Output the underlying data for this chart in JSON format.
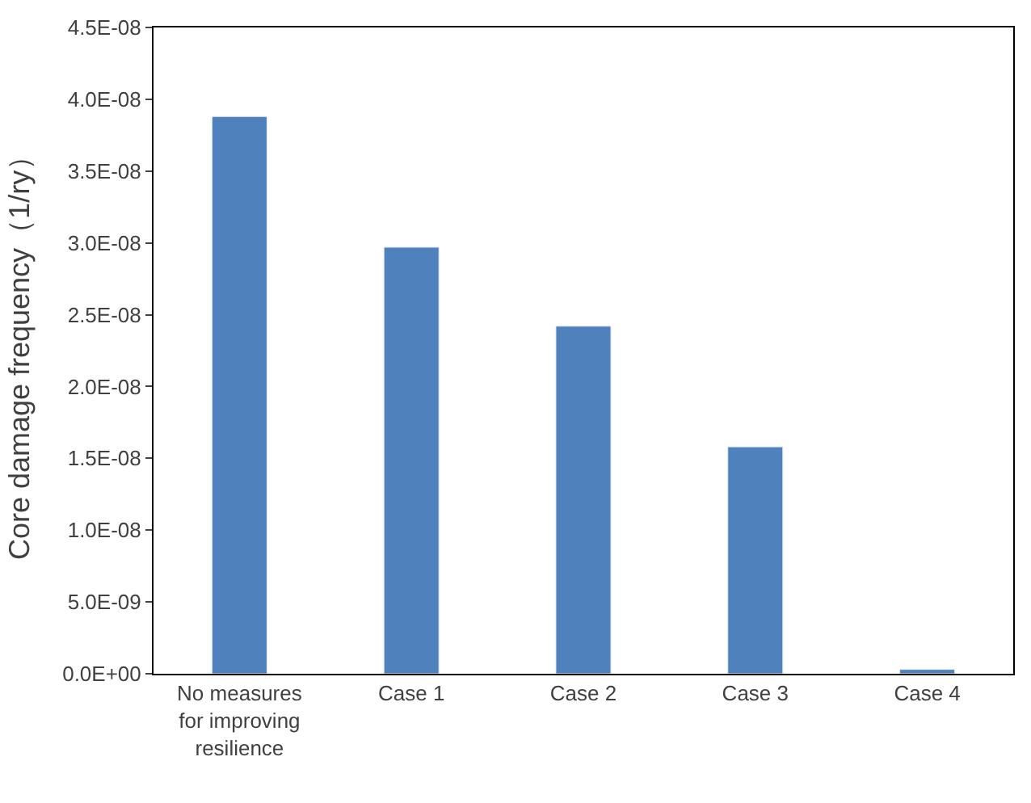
{
  "chart_data": {
    "type": "bar",
    "ylabel": "Core damage frequency（1/ry）",
    "categories": [
      "No measures for improving resilience",
      "Case 1",
      "Case 2",
      "Case 3",
      "Case 4"
    ],
    "values": [
      3.88e-08,
      2.97e-08,
      2.42e-08,
      1.58e-08,
      3e-10
    ],
    "color": "#4f81bd",
    "ylim": [
      0,
      4.5e-08
    ],
    "yticks": [
      {
        "value": 0,
        "label": "0.0E+00"
      },
      {
        "value": 5e-09,
        "label": "5.0E-09"
      },
      {
        "value": 1e-08,
        "label": "1.0E-08"
      },
      {
        "value": 1.5e-08,
        "label": "1.5E-08"
      },
      {
        "value": 2e-08,
        "label": "2.0E-08"
      },
      {
        "value": 2.5e-08,
        "label": "2.5E-08"
      },
      {
        "value": 3e-08,
        "label": "3.0E-08"
      },
      {
        "value": 3.5e-08,
        "label": "3.5E-08"
      },
      {
        "value": 4e-08,
        "label": "4.0E-08"
      },
      {
        "value": 4.5e-08,
        "label": "4.5E-08"
      }
    ],
    "legend": false
  }
}
